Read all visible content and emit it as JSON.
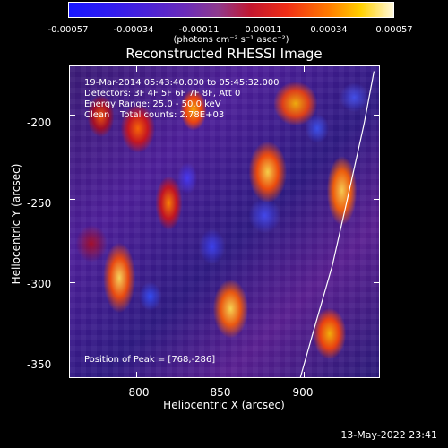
{
  "chart_data": {
    "type": "heatmap",
    "title": "Reconstructed RHESSI Image",
    "xlabel": "Heliocentric X (arcsec)",
    "ylabel": "Heliocentric Y (arcsec)",
    "xlim": [
      760,
      945
    ],
    "ylim": [
      -357,
      -170
    ],
    "x_ticks": [
      800,
      850,
      900
    ],
    "y_ticks": [
      -200,
      -250,
      -300,
      -350
    ],
    "colorbar": {
      "min": -0.00057,
      "max": 0.00057,
      "tick_labels": [
        "-0.00057",
        "-0.00034",
        "-0.00011",
        "0.00011",
        "0.00034",
        "0.00057"
      ],
      "unit": "(photons cm⁻² s⁻¹ asec⁻²)"
    },
    "annotations": {
      "time_range": "19-Mar-2014 05:43:40.000 to 05:45:32.000",
      "detectors": "Detectors: 3F 4F 5F 6F 7F 8F, Att 0",
      "energy_range": "Energy Range: 25.0 - 50.0 keV",
      "clean": "Clean",
      "total_counts": "Total counts: 2.78E+03",
      "peak": "Position of Peak = [768,-286]"
    },
    "footer": "13-May-2022 23:41",
    "limb_curve": [
      [
        942,
        -173
      ],
      [
        936,
        -205
      ],
      [
        926,
        -250
      ],
      [
        917,
        -290
      ],
      [
        907,
        -325
      ],
      [
        898,
        -357
      ]
    ]
  }
}
